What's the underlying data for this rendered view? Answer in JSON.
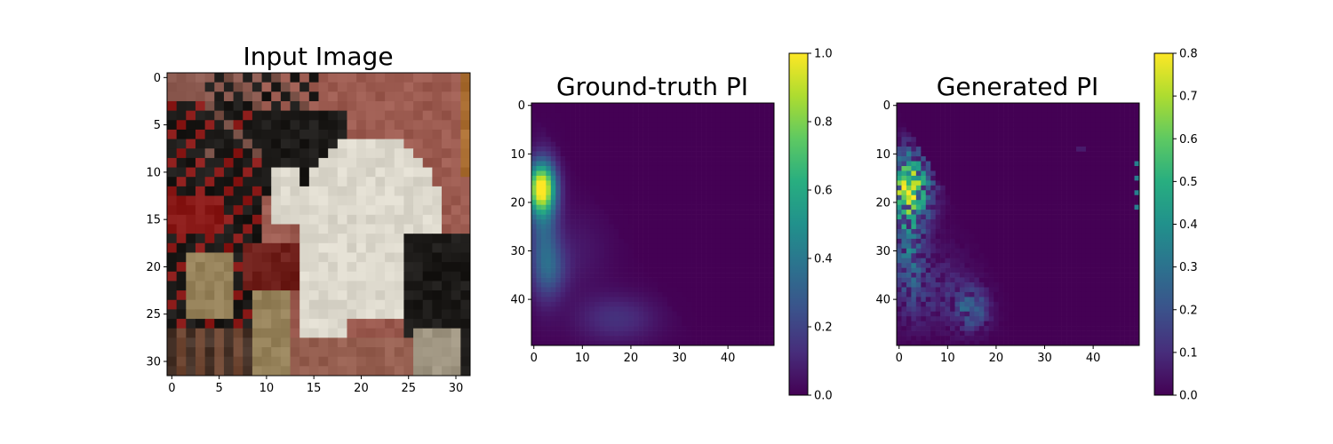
{
  "chart_data": [
    {
      "type": "image",
      "title": "Input Image",
      "xlim": [
        0,
        31
      ],
      "ylim": [
        31,
        0
      ],
      "xticks": [
        "0",
        "5",
        "10",
        "15",
        "20",
        "25",
        "30"
      ],
      "yticks": [
        "0",
        "5",
        "10",
        "15",
        "20",
        "25",
        "30"
      ],
      "content": "32x32 RGB photo of a black-and-white cat on a reddish-brown background",
      "colors": {
        "background": "#9c5b50",
        "red_cloth": "#8a1a18",
        "white_fur": "#dcd8cc",
        "black_fur": "#1c1a18"
      }
    },
    {
      "type": "heatmap",
      "title": "Ground-truth PI",
      "xlim": [
        0,
        49
      ],
      "ylim": [
        49,
        0
      ],
      "xticks": [
        "0",
        "10",
        "20",
        "30",
        "40"
      ],
      "yticks": [
        "0",
        "10",
        "20",
        "30",
        "40"
      ],
      "colormap": "viridis",
      "colorbar": {
        "min": 0.0,
        "max": 1.0,
        "ticks": [
          "0.0",
          "0.2",
          "0.4",
          "0.6",
          "0.8",
          "1.0"
        ]
      },
      "blobs": [
        {
          "x": 1.5,
          "y": 17,
          "sx": 2.0,
          "sy": 3.5,
          "amp": 0.92
        },
        {
          "x": 2.0,
          "y": 25,
          "sx": 2.2,
          "sy": 9.0,
          "amp": 0.28
        },
        {
          "x": 3.5,
          "y": 34,
          "sx": 2.5,
          "sy": 4.0,
          "amp": 0.18
        },
        {
          "x": 17,
          "y": 44,
          "sx": 6.0,
          "sy": 3.5,
          "amp": 0.14
        },
        {
          "x": 9,
          "y": 30,
          "sx": 5.0,
          "sy": 6.0,
          "amp": 0.06
        }
      ]
    },
    {
      "type": "heatmap",
      "title": "Generated PI",
      "xlim": [
        0,
        49
      ],
      "ylim": [
        49,
        0
      ],
      "xticks": [
        "0",
        "10",
        "20",
        "30",
        "40"
      ],
      "yticks": [
        "0",
        "10",
        "20",
        "30",
        "40"
      ],
      "colormap": "viridis",
      "colorbar": {
        "min": 0.0,
        "max": 0.8,
        "ticks": [
          "0.0",
          "0.1",
          "0.2",
          "0.3",
          "0.4",
          "0.5",
          "0.6",
          "0.7",
          "0.8"
        ]
      },
      "region": "triangular region below the diagonal from (0,2) to (28,48)",
      "peak": {
        "x": 2,
        "y": 17,
        "value": 0.78
      }
    }
  ],
  "colors": {
    "axis": "#000000",
    "background": "#ffffff"
  }
}
